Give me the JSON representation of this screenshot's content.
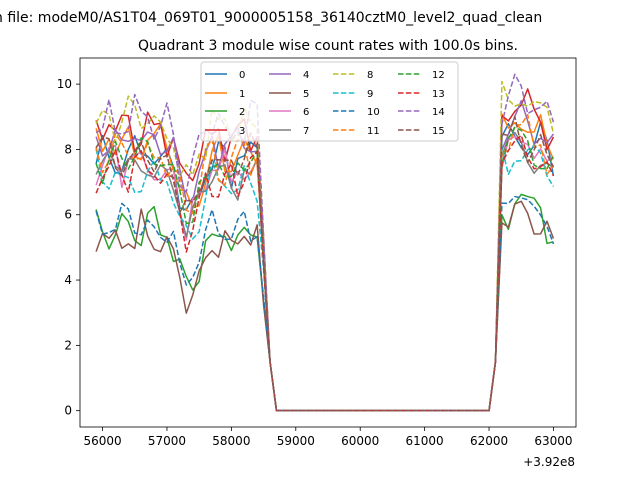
{
  "chart_data": {
    "type": "line",
    "suptitle": "n file: modeM0/AS1T04_069T01_9000005158_36140cztM0_level2_quad_clean",
    "title": "Quadrant 3 module wise count rates with 100.0s bins.",
    "xlabel": "",
    "ylabel": "",
    "x_offset_label": "+3.92e8",
    "xlim": [
      55650,
      63350
    ],
    "ylim": [
      -0.5,
      10.8
    ],
    "x_ticks": [
      56000,
      57000,
      58000,
      59000,
      60000,
      61000,
      62000,
      63000
    ],
    "x_tick_labels": [
      "56000",
      "57000",
      "58000",
      "59000",
      "60000",
      "61000",
      "62000",
      "63000"
    ],
    "y_ticks": [
      0,
      2,
      4,
      6,
      8,
      10
    ],
    "y_tick_labels": [
      "0",
      "2",
      "4",
      "6",
      "8",
      "10"
    ],
    "legend_position": "upper-center",
    "x_start": 55900,
    "x_step": 100,
    "n_points": 72,
    "series": [
      {
        "name": "0",
        "color": "#1f77b4",
        "dash": false,
        "base": 7.9,
        "amp": 0.35,
        "ph": 0.3
      },
      {
        "name": "1",
        "color": "#ff7f0e",
        "dash": false,
        "base": 8.1,
        "amp": 0.35,
        "ph": 1.1
      },
      {
        "name": "2",
        "color": "#2ca02c",
        "dash": false,
        "base": 5.6,
        "amp": 0.35,
        "ph": 2.0
      },
      {
        "name": "3",
        "color": "#d62728",
        "dash": false,
        "base": 8.7,
        "amp": 0.35,
        "ph": 2.7
      },
      {
        "name": "4",
        "color": "#9467bd",
        "dash": false,
        "base": 8.3,
        "amp": 0.4,
        "ph": 3.4
      },
      {
        "name": "5",
        "color": "#8c564b",
        "dash": false,
        "base": 5.4,
        "amp": 0.35,
        "ph": 4.2
      },
      {
        "name": "6",
        "color": "#e377c2",
        "dash": false,
        "base": 7.6,
        "amp": 0.4,
        "ph": 5.0
      },
      {
        "name": "7",
        "color": "#7f7f7f",
        "dash": false,
        "base": 7.4,
        "amp": 0.35,
        "ph": 5.7
      },
      {
        "name": "8",
        "color": "#bcbd22",
        "dash": true,
        "base": 8.9,
        "amp": 0.45,
        "ph": 0.8
      },
      {
        "name": "9",
        "color": "#17becf",
        "dash": true,
        "base": 7.2,
        "amp": 0.4,
        "ph": 1.6
      },
      {
        "name": "10",
        "color": "#1f77b4",
        "dash": true,
        "base": 5.8,
        "amp": 0.3,
        "ph": 2.4
      },
      {
        "name": "11",
        "color": "#ff7f0e",
        "dash": true,
        "base": 7.9,
        "amp": 0.4,
        "ph": 3.1
      },
      {
        "name": "12",
        "color": "#2ca02c",
        "dash": true,
        "base": 7.7,
        "amp": 0.35,
        "ph": 3.9
      },
      {
        "name": "13",
        "color": "#d62728",
        "dash": true,
        "base": 7.4,
        "amp": 0.4,
        "ph": 4.6
      },
      {
        "name": "14",
        "color": "#9467bd",
        "dash": true,
        "base": 8.9,
        "amp": 0.45,
        "ph": 5.3
      },
      {
        "name": "15",
        "color": "#8c564b",
        "dash": true,
        "base": 7.8,
        "amp": 0.35,
        "ph": 6.0
      }
    ]
  }
}
